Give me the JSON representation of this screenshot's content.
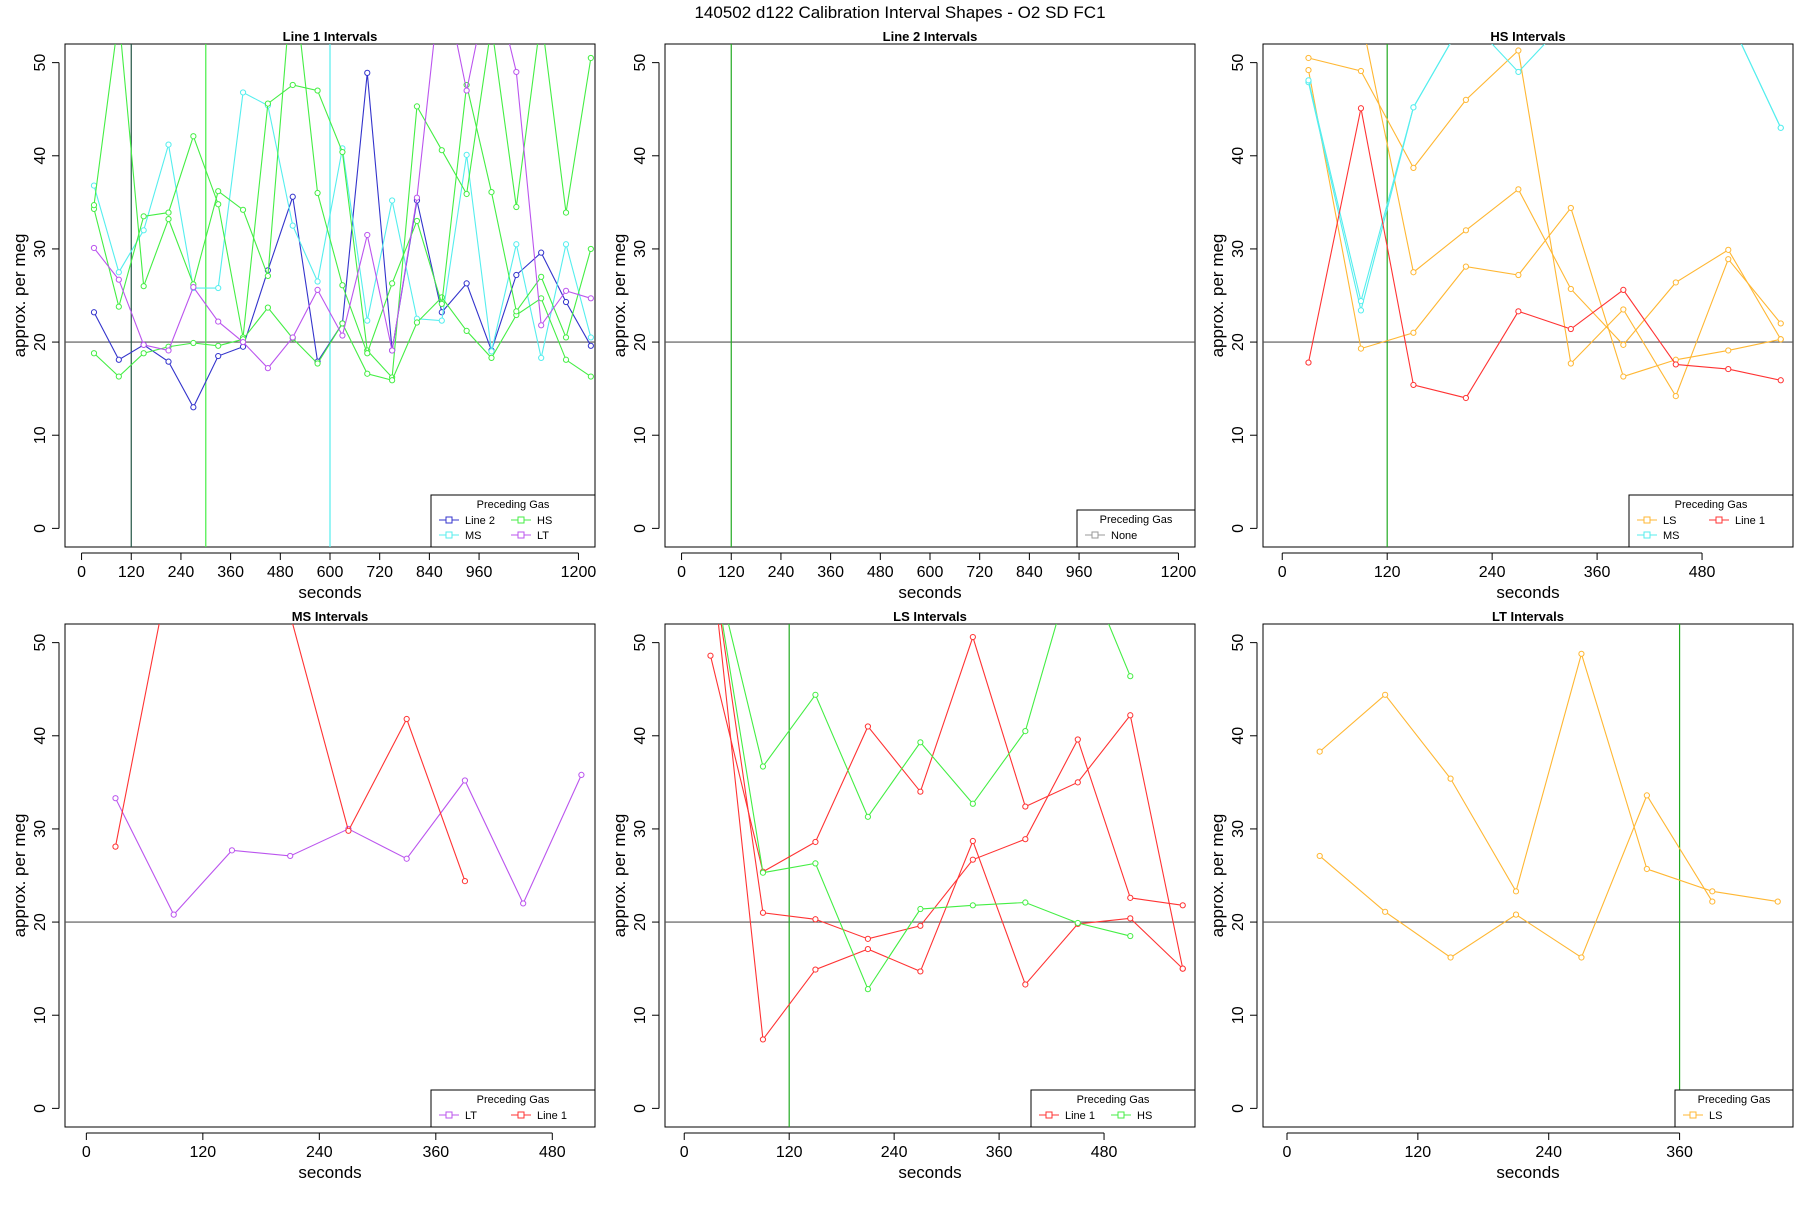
{
  "title": "140502   d122   Calibration Interval Shapes - O2 SD FC1",
  "colors": {
    "Line 1": "#ff3333",
    "Line 2": "#3333cc",
    "HS": "#44ee44",
    "MS": "#55eeee",
    "LS": "#ffb733",
    "LT": "#bb55ee",
    "None": "#999999",
    "refline": "#555555",
    "vline_green": "#22aa22",
    "vline_dark": "#225544"
  },
  "chart_data": [
    {
      "type": "line",
      "title": "Line 1 Intervals",
      "xlabel": "seconds",
      "ylabel": "approx. per meg",
      "xlim": [
        -40,
        1240
      ],
      "ylim": [
        -2,
        52
      ],
      "xticks": [
        0,
        120,
        240,
        360,
        480,
        600,
        720,
        840,
        960,
        1200
      ],
      "yticks": [
        0,
        10,
        20,
        30,
        40,
        50
      ],
      "hline": 20,
      "vlines": [
        {
          "x": 120,
          "color": "#225544"
        },
        {
          "x": 300,
          "color": "#44ee44"
        },
        {
          "x": 600,
          "color": "#55eeee"
        }
      ],
      "legend": {
        "title": "Preceding Gas",
        "position": "bottom-right",
        "entries": [
          "Line 2",
          "MS",
          "HS",
          "LT"
        ]
      },
      "series": [
        {
          "name": "Line 2",
          "gas": "Line 2",
          "x": [
            30,
            90,
            150,
            210,
            270,
            330,
            390,
            450,
            510,
            570,
            630,
            690,
            750,
            810,
            870,
            930,
            990,
            1050,
            1110,
            1170,
            1230
          ],
          "values": [
            23.2,
            18.1,
            19.7,
            17.9,
            13.0,
            18.5,
            19.5,
            27.7,
            35.6,
            17.9,
            22.0,
            48.9,
            19.1,
            35.2,
            23.2,
            26.3,
            19.1,
            27.2,
            29.6,
            24.3,
            19.6
          ]
        },
        {
          "name": "MS",
          "gas": "MS",
          "x": [
            30,
            90,
            150,
            210,
            270,
            330,
            390,
            450,
            510,
            570,
            630,
            690,
            750,
            810,
            870,
            930,
            990,
            1050,
            1110,
            1170,
            1230
          ],
          "values": [
            36.8,
            27.5,
            32.0,
            41.2,
            25.8,
            25.8,
            46.8,
            45.4,
            32.5,
            26.5,
            40.8,
            22.3,
            35.2,
            22.5,
            22.3,
            40.1,
            19.0,
            30.5,
            18.3,
            30.5,
            20.5
          ]
        },
        {
          "name": "HS a",
          "gas": "HS",
          "x": [
            30,
            90,
            150,
            210,
            270,
            330,
            390,
            450,
            510,
            570,
            630,
            690,
            750,
            810,
            870,
            930,
            990,
            1050,
            1110,
            1170,
            1230
          ],
          "values": [
            34.3,
            23.8,
            33.5,
            33.9,
            42.1,
            34.8,
            20.5,
            45.6,
            47.6,
            47.0,
            40.4,
            19.1,
            16.2,
            45.3,
            40.6,
            35.9,
            54.0,
            34.5,
            55.0,
            33.9,
            50.5
          ]
        },
        {
          "name": "HS b",
          "gas": "HS",
          "x": [
            30,
            90,
            150,
            210,
            270,
            330,
            390,
            450,
            510,
            570,
            630,
            690,
            750,
            810,
            870,
            930,
            990,
            1050,
            1110,
            1170,
            1230
          ],
          "values": [
            18.8,
            16.3,
            18.8,
            19.5,
            19.9,
            19.6,
            20.3,
            23.7,
            20.4,
            17.7,
            22.0,
            16.6,
            15.9,
            22.1,
            24.8,
            21.2,
            18.3,
            22.9,
            24.7,
            18.1,
            16.3
          ]
        },
        {
          "name": "HS c",
          "gas": "HS",
          "x": [
            30,
            90,
            150,
            210,
            270,
            330,
            390,
            450,
            510,
            570,
            630,
            690,
            750,
            810,
            870,
            930,
            990,
            1050,
            1110,
            1170,
            1230
          ],
          "values": [
            34.7,
            55.0,
            26.0,
            33.2,
            26.2,
            36.2,
            34.2,
            27.1,
            60.0,
            36.0,
            26.1,
            18.8,
            26.3,
            33.0,
            24.1,
            47.6,
            36.1,
            23.3,
            27.0,
            20.5,
            30.0
          ]
        },
        {
          "name": "LT",
          "gas": "LT",
          "x": [
            30,
            90,
            150,
            210,
            270,
            330,
            390,
            450,
            510,
            570,
            630,
            690,
            750,
            810,
            870,
            930,
            990,
            1050,
            1110,
            1170,
            1230
          ],
          "values": [
            30.1,
            26.7,
            19.7,
            19.1,
            25.9,
            22.2,
            20.0,
            17.2,
            20.5,
            25.6,
            20.7,
            31.5,
            19.1,
            35.5,
            60.0,
            47.0,
            60.0,
            49.0,
            21.8,
            25.5,
            24.7
          ]
        }
      ]
    },
    {
      "type": "line",
      "title": "Line 2 Intervals",
      "xlabel": "seconds",
      "ylabel": "approx. per meg",
      "xlim": [
        -40,
        1240
      ],
      "ylim": [
        -2,
        52
      ],
      "xticks": [
        0,
        120,
        240,
        360,
        480,
        600,
        720,
        840,
        960,
        1200
      ],
      "yticks": [
        0,
        10,
        20,
        30,
        40,
        50
      ],
      "hline": 20,
      "vlines": [
        {
          "x": 120,
          "color": "#22aa22"
        }
      ],
      "legend": {
        "title": "Preceding Gas",
        "position": "bottom-right",
        "entries": [
          "None"
        ]
      },
      "series": []
    },
    {
      "type": "line",
      "title": "HS Intervals",
      "xlabel": "seconds",
      "ylabel": "approx. per meg",
      "xlim": [
        -22,
        584
      ],
      "ylim": [
        -2,
        52
      ],
      "xticks": [
        0,
        120,
        240,
        360,
        480
      ],
      "yticks": [
        0,
        10,
        20,
        30,
        40,
        50
      ],
      "hline": 20,
      "vlines": [
        {
          "x": 120,
          "color": "#22aa22"
        }
      ],
      "legend": {
        "title": "Preceding Gas",
        "position": "bottom-right",
        "entries": [
          "LS",
          "MS",
          "Line 1"
        ]
      },
      "series": [
        {
          "name": "LS a",
          "gas": "LS",
          "x": [
            30,
            90,
            150,
            210,
            270,
            330,
            390,
            450,
            510,
            570
          ],
          "values": [
            50.5,
            49.1,
            38.7,
            46.0,
            51.3,
            17.7,
            23.5,
            14.2,
            28.9,
            22.0
          ]
        },
        {
          "name": "LS b",
          "gas": "LS",
          "x": [
            30,
            90,
            150,
            210,
            270,
            330,
            390,
            450,
            510,
            570
          ],
          "values": [
            49.2,
            19.3,
            21.0,
            28.1,
            27.2,
            34.4,
            16.3,
            18.1,
            19.1,
            20.3
          ]
        },
        {
          "name": "LS c",
          "gas": "LS",
          "x": [
            30,
            90,
            150,
            210,
            270,
            330,
            390,
            450,
            510,
            570
          ],
          "values": [
            55.0,
            55.0,
            27.5,
            32.0,
            36.4,
            25.7,
            19.7,
            26.4,
            29.9,
            20.3
          ]
        },
        {
          "name": "MS",
          "gas": "MS",
          "x": [
            30,
            90,
            150,
            210,
            270,
            330,
            390,
            450,
            510,
            570
          ],
          "values": [
            47.9,
            23.4,
            45.2,
            55.0,
            49.0,
            55.0,
            55.0,
            55.0,
            55.0,
            43.0
          ]
        },
        {
          "name": "MS b",
          "gas": "MS",
          "x": [
            30,
            90,
            150,
            210,
            270,
            330,
            390,
            450,
            510,
            570
          ],
          "values": [
            48.1,
            24.4,
            45.2,
            55.0,
            55.0,
            55.0,
            55.0,
            55.0,
            55.0,
            43.0
          ]
        },
        {
          "name": "Line 1",
          "gas": "Line 1",
          "x": [
            30,
            90,
            150,
            210,
            270,
            330,
            390,
            450,
            510,
            570
          ],
          "values": [
            17.8,
            45.1,
            15.4,
            14.0,
            23.3,
            21.4,
            25.6,
            17.6,
            17.1,
            15.9
          ]
        }
      ]
    },
    {
      "type": "line",
      "title": "MS Intervals",
      "xlabel": "seconds",
      "ylabel": "approx. per meg",
      "xlim": [
        -22,
        524
      ],
      "ylim": [
        -2,
        52
      ],
      "xticks": [
        0,
        120,
        240,
        360,
        480
      ],
      "yticks": [
        0,
        10,
        20,
        30,
        40,
        50
      ],
      "hline": 20,
      "vlines": [],
      "legend": {
        "title": "Preceding Gas",
        "position": "bottom-right",
        "entries": [
          "LT",
          "Line 1"
        ]
      },
      "series": [
        {
          "name": "LT",
          "gas": "LT",
          "x": [
            30,
            90,
            150,
            210,
            270,
            330,
            390,
            450,
            510
          ],
          "values": [
            33.3,
            20.8,
            27.7,
            27.1,
            30.0,
            26.8,
            35.2,
            22.0,
            35.8
          ]
        },
        {
          "name": "Line 1",
          "gas": "Line 1",
          "x": [
            30,
            90,
            150,
            210,
            270,
            330,
            390
          ],
          "values": [
            28.1,
            60.0,
            60.0,
            53.0,
            29.8,
            41.8,
            24.4
          ]
        }
      ]
    },
    {
      "type": "line",
      "title": "LS Intervals",
      "xlabel": "seconds",
      "ylabel": "approx. per meg",
      "xlim": [
        -22,
        584
      ],
      "ylim": [
        -2,
        52
      ],
      "xticks": [
        0,
        120,
        240,
        360,
        480
      ],
      "yticks": [
        0,
        10,
        20,
        30,
        40,
        50
      ],
      "hline": 20,
      "vlines": [
        {
          "x": 120,
          "color": "#22aa22"
        }
      ],
      "legend": {
        "title": "Preceding Gas",
        "position": "bottom-right",
        "entries": [
          "Line 1",
          "HS"
        ]
      },
      "series": [
        {
          "name": "Line 1 a",
          "gas": "Line 1",
          "x": [
            30,
            90,
            150,
            210,
            270,
            330,
            390,
            450,
            510,
            570
          ],
          "values": [
            48.6,
            25.4,
            28.6,
            41.0,
            34.0,
            50.6,
            32.4,
            35.0,
            42.2,
            15.0
          ]
        },
        {
          "name": "Line 1 b",
          "gas": "Line 1",
          "x": [
            30,
            90,
            150,
            210,
            270,
            330,
            390,
            450,
            510,
            570
          ],
          "values": [
            60.0,
            7.4,
            14.9,
            17.1,
            14.7,
            28.7,
            13.3,
            19.8,
            20.4,
            15.0
          ]
        },
        {
          "name": "Line 1 c",
          "gas": "Line 1",
          "x": [
            30,
            90,
            150,
            210,
            270,
            330,
            390,
            450,
            510,
            570
          ],
          "values": [
            60.0,
            21.0,
            20.3,
            18.2,
            19.6,
            26.7,
            28.9,
            39.6,
            22.6,
            21.8
          ]
        },
        {
          "name": "HS a",
          "gas": "HS",
          "x": [
            30,
            90,
            150,
            210,
            270,
            330,
            390,
            450,
            510
          ],
          "values": [
            60.0,
            36.7,
            44.4,
            31.3,
            39.3,
            32.7,
            40.5,
            60.0,
            46.4
          ]
        },
        {
          "name": "HS b",
          "gas": "HS",
          "x": [
            30,
            90,
            150,
            210,
            270,
            330,
            390,
            450,
            510
          ],
          "values": [
            60.0,
            25.3,
            26.3,
            12.8,
            21.4,
            21.8,
            22.1,
            19.9,
            18.5
          ]
        }
      ]
    },
    {
      "type": "line",
      "title": "LT Intervals",
      "xlabel": "seconds",
      "ylabel": "approx. per meg",
      "xlim": [
        -22,
        464
      ],
      "ylim": [
        -2,
        52
      ],
      "xticks": [
        0,
        120,
        240,
        360
      ],
      "yticks": [
        0,
        10,
        20,
        30,
        40,
        50
      ],
      "hline": 20,
      "vlines": [
        {
          "x": 360,
          "color": "#22aa22"
        }
      ],
      "legend": {
        "title": "Preceding Gas",
        "position": "bottom-right",
        "entries": [
          "LS"
        ]
      },
      "series": [
        {
          "name": "LS a",
          "gas": "LS",
          "x": [
            30,
            90,
            150,
            210,
            270,
            330,
            390,
            450
          ],
          "values": [
            38.3,
            44.4,
            35.4,
            23.3,
            48.8,
            25.7,
            23.3,
            22.2
          ]
        },
        {
          "name": "LS b",
          "gas": "LS",
          "x": [
            30,
            90,
            150,
            210,
            270,
            330,
            390
          ],
          "values": [
            27.1,
            21.1,
            16.2,
            20.8,
            16.2,
            33.6,
            22.2
          ]
        }
      ]
    }
  ]
}
